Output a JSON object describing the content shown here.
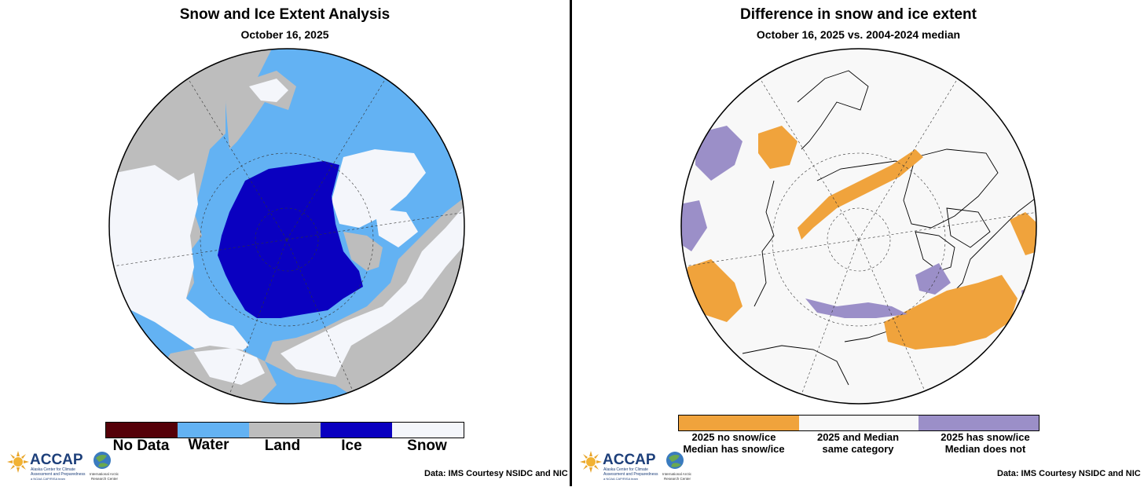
{
  "left": {
    "title": "Snow and Ice Extent Analysis",
    "subtitle": "October 16, 2025",
    "legend": [
      {
        "label": "No Data",
        "color": "#550008"
      },
      {
        "label": "Water",
        "color": "#63b2f3"
      },
      {
        "label": "Land",
        "color": "#bdbdbd"
      },
      {
        "label": "Ice",
        "color": "#0a00c0"
      },
      {
        "label": "Snow",
        "color": "#f4f6fb"
      }
    ],
    "credit": "Data: IMS Courtesy NSIDC and NIC"
  },
  "right": {
    "title": "Difference in snow and ice extent",
    "subtitle": "October 16, 2025 vs. 2004-2024 median",
    "legend": [
      {
        "line1": "2025 no snow/ice",
        "line2": "Median has snow/ice",
        "color": "#f0a33c"
      },
      {
        "line1": "2025 and Median",
        "line2": "same category",
        "color": "#f8f8f8"
      },
      {
        "line1": "2025 has snow/ice",
        "line2": "Median does not",
        "color": "#9b8fc8"
      }
    ],
    "credit": "Data: IMS Courtesy NSIDC and NIC"
  },
  "logo": {
    "name": "ACCAP",
    "tagline1": "Alaska Center for Climate",
    "tagline2": "Assessment and Preparedness",
    "tagline3": "a NOAA CAP/RISA team",
    "partner1": "International Arctic",
    "partner2": "Research Center"
  }
}
